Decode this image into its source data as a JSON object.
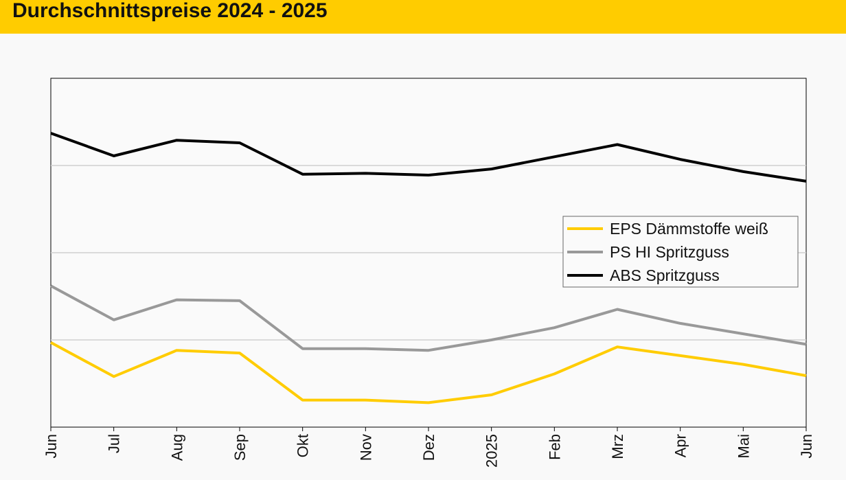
{
  "header": {
    "title": "Durchschnittspreise 2024 - 2025"
  },
  "chart_data": {
    "type": "line",
    "title": "Durchschnittspreise 2024 - 2025",
    "xlabel": "",
    "ylabel": "",
    "categories": [
      "Jun",
      "Jul",
      "Aug",
      "Sep",
      "Okt",
      "Nov",
      "Dez",
      "2025",
      "Feb",
      "Mrz",
      "Apr",
      "Mai",
      "Jun"
    ],
    "ylim": [
      0,
      4
    ],
    "y_gridlines": [
      1,
      2,
      3
    ],
    "y_tick_labels_visible": false,
    "grid": true,
    "legend_position": "right",
    "series": [
      {
        "name": "EPS Dämmstoffe weiß",
        "color": "#ffcc00",
        "values": [
          0.97,
          0.58,
          0.88,
          0.85,
          0.31,
          0.31,
          0.28,
          0.37,
          0.61,
          0.92,
          0.82,
          0.72,
          0.59
        ]
      },
      {
        "name": "PS HI Spritzguss",
        "color": "#999999",
        "values": [
          1.62,
          1.23,
          1.46,
          1.45,
          0.9,
          0.9,
          0.88,
          1.0,
          1.14,
          1.35,
          1.19,
          1.07,
          0.95
        ]
      },
      {
        "name": "ABS Spritzguss",
        "color": "#000000",
        "values": [
          3.37,
          3.11,
          3.29,
          3.26,
          2.9,
          2.91,
          2.89,
          2.96,
          3.1,
          3.24,
          3.07,
          2.93,
          2.82
        ]
      }
    ]
  }
}
